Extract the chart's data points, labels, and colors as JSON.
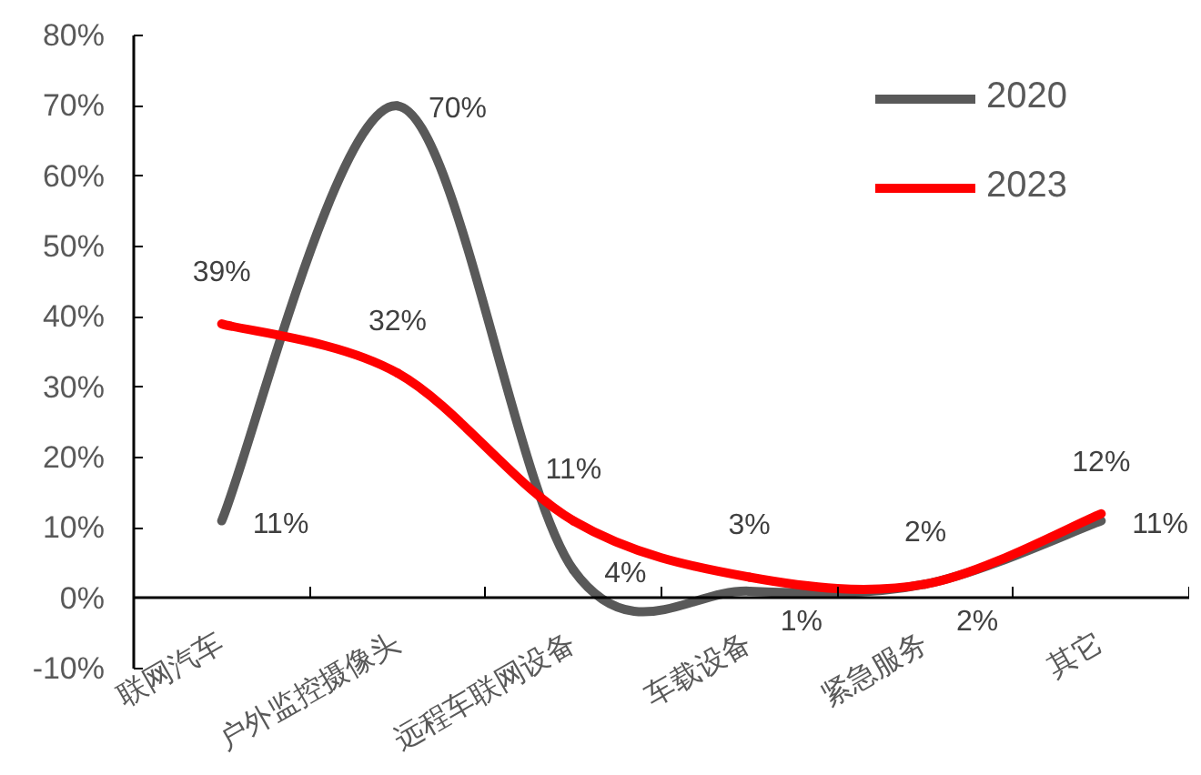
{
  "chart_data": {
    "type": "line",
    "categories": [
      "联网汽车",
      "户外监控摄像头",
      "远程车联网设备",
      "车载设备",
      "紧急服务",
      "其它"
    ],
    "series": [
      {
        "name": "2020",
        "color": "#595959",
        "values": [
          11,
          70,
          4,
          1,
          2,
          11
        ],
        "value_labels": [
          "11%",
          "70%",
          "4%",
          "1%",
          "2%",
          "11%"
        ]
      },
      {
        "name": "2023",
        "color": "#ff0000",
        "values": [
          39,
          32,
          11,
          3,
          2,
          12
        ],
        "value_labels": [
          "39%",
          "32%",
          "11%",
          "3%",
          "2%",
          "12%"
        ]
      }
    ],
    "ylim": [
      -10,
      80
    ],
    "yticks": [
      {
        "value": -10,
        "label": "-10%"
      },
      {
        "value": 0,
        "label": "0%"
      },
      {
        "value": 10,
        "label": "10%"
      },
      {
        "value": 20,
        "label": "20%"
      },
      {
        "value": 30,
        "label": "30%"
      },
      {
        "value": 40,
        "label": "40%"
      },
      {
        "value": 50,
        "label": "50%"
      },
      {
        "value": 60,
        "label": "60%"
      },
      {
        "value": 70,
        "label": "70%"
      },
      {
        "value": 80,
        "label": "80%"
      }
    ],
    "legend": "top right",
    "grid": false
  }
}
